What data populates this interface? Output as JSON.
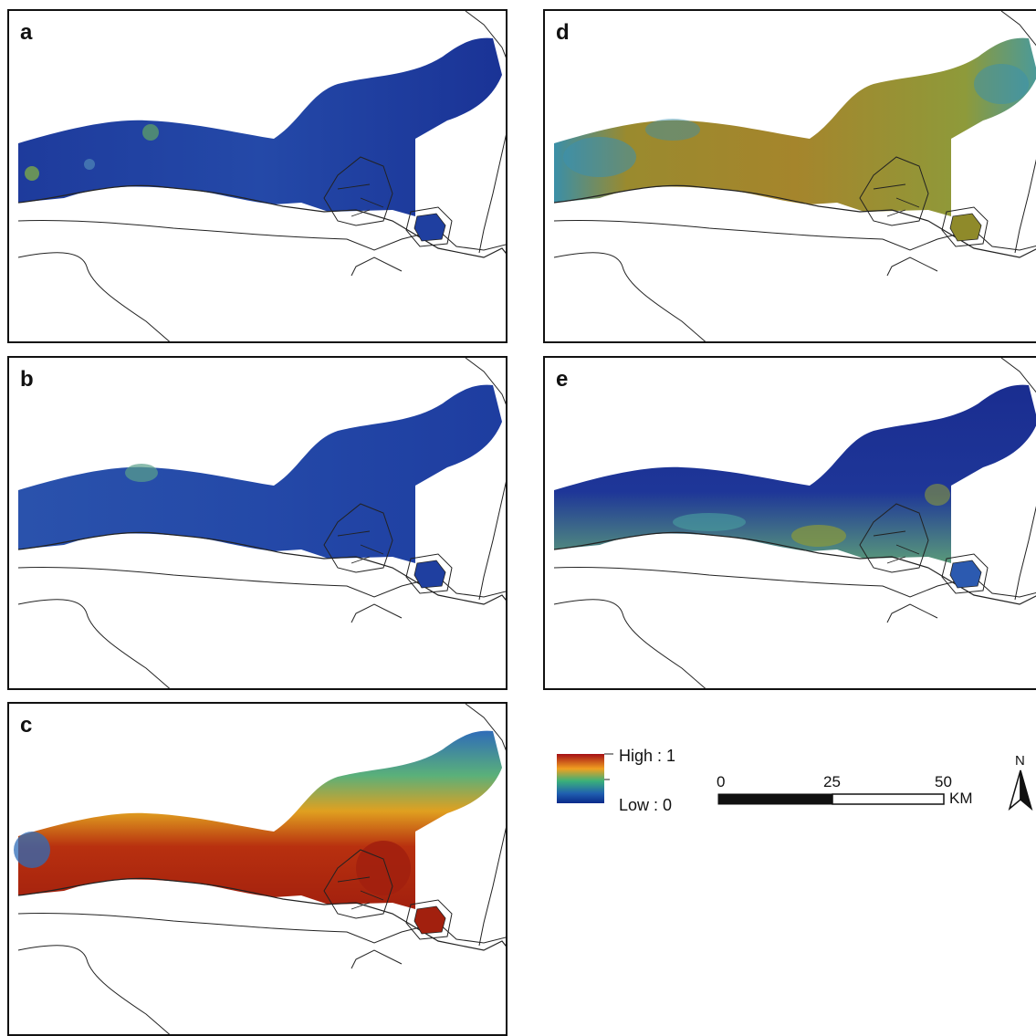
{
  "panels": [
    {
      "id": "a",
      "label": "a",
      "palette": [
        "#1f3fa0",
        "#2a56b0",
        "#1a3396"
      ],
      "island": "#1f3fa0"
    },
    {
      "id": "d",
      "label": "d",
      "palette": [
        "#8f8a2a",
        "#a5862c",
        "#3a8fa0"
      ],
      "island": "#8f8a2a"
    },
    {
      "id": "b",
      "label": "b",
      "palette": [
        "#2449a8",
        "#2f62b4",
        "#1c3b9c"
      ],
      "island": "#1f3fa0"
    },
    {
      "id": "e",
      "label": "e",
      "palette": [
        "#1c2f92",
        "#2a4fae",
        "#6a9a5a"
      ],
      "island": "#2c5ab0"
    },
    {
      "id": "c",
      "label": "c",
      "palette": [
        "#a2200e",
        "#cc5a1a",
        "#3a7abc"
      ],
      "island": "#a2200e"
    }
  ],
  "legend": {
    "high_label": "High : 1",
    "low_label": "Low : 0",
    "colors": [
      "#a50f15",
      "#f0a020",
      "#3ab07a",
      "#2060b0",
      "#0a2a8a"
    ]
  },
  "scale_bar": {
    "ticks": [
      "0",
      "25",
      "50"
    ],
    "unit": "KM"
  },
  "north_arrow": {
    "label": "N"
  }
}
